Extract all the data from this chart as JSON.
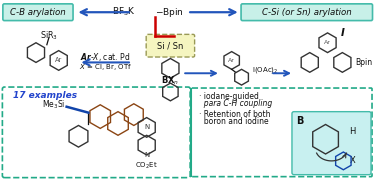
{
  "bg_color": "#ffffff",
  "title_cb": "C-B arylation",
  "title_cs": "C-Si (or Sn) arylation",
  "box_cyan_color": "#c8f0e8",
  "box_cyan_edge": "#44bbaa",
  "box_si_sn_color": "#f5f5c0",
  "box_si_sn_edge": "#aaaaaa",
  "box_bottom_edge": "#22aa88",
  "teal_box_color": "#c8f0f0",
  "teal_box_edge": "#44bbaa",
  "arrow_color": "#2255bb",
  "red_color": "#cc0000",
  "blue_text": "#2244cc",
  "dark_text": "#111111",
  "bond_blue": "#1144aa",
  "brown": "#8B4513",
  "examples_text": "17 examples",
  "bullet1_line1": "· iodane-guided",
  "bullet1_line2": "  para C-H coupling",
  "bullet2_line1": "· Retention of both",
  "bullet2_line2": "  boron and iodine"
}
